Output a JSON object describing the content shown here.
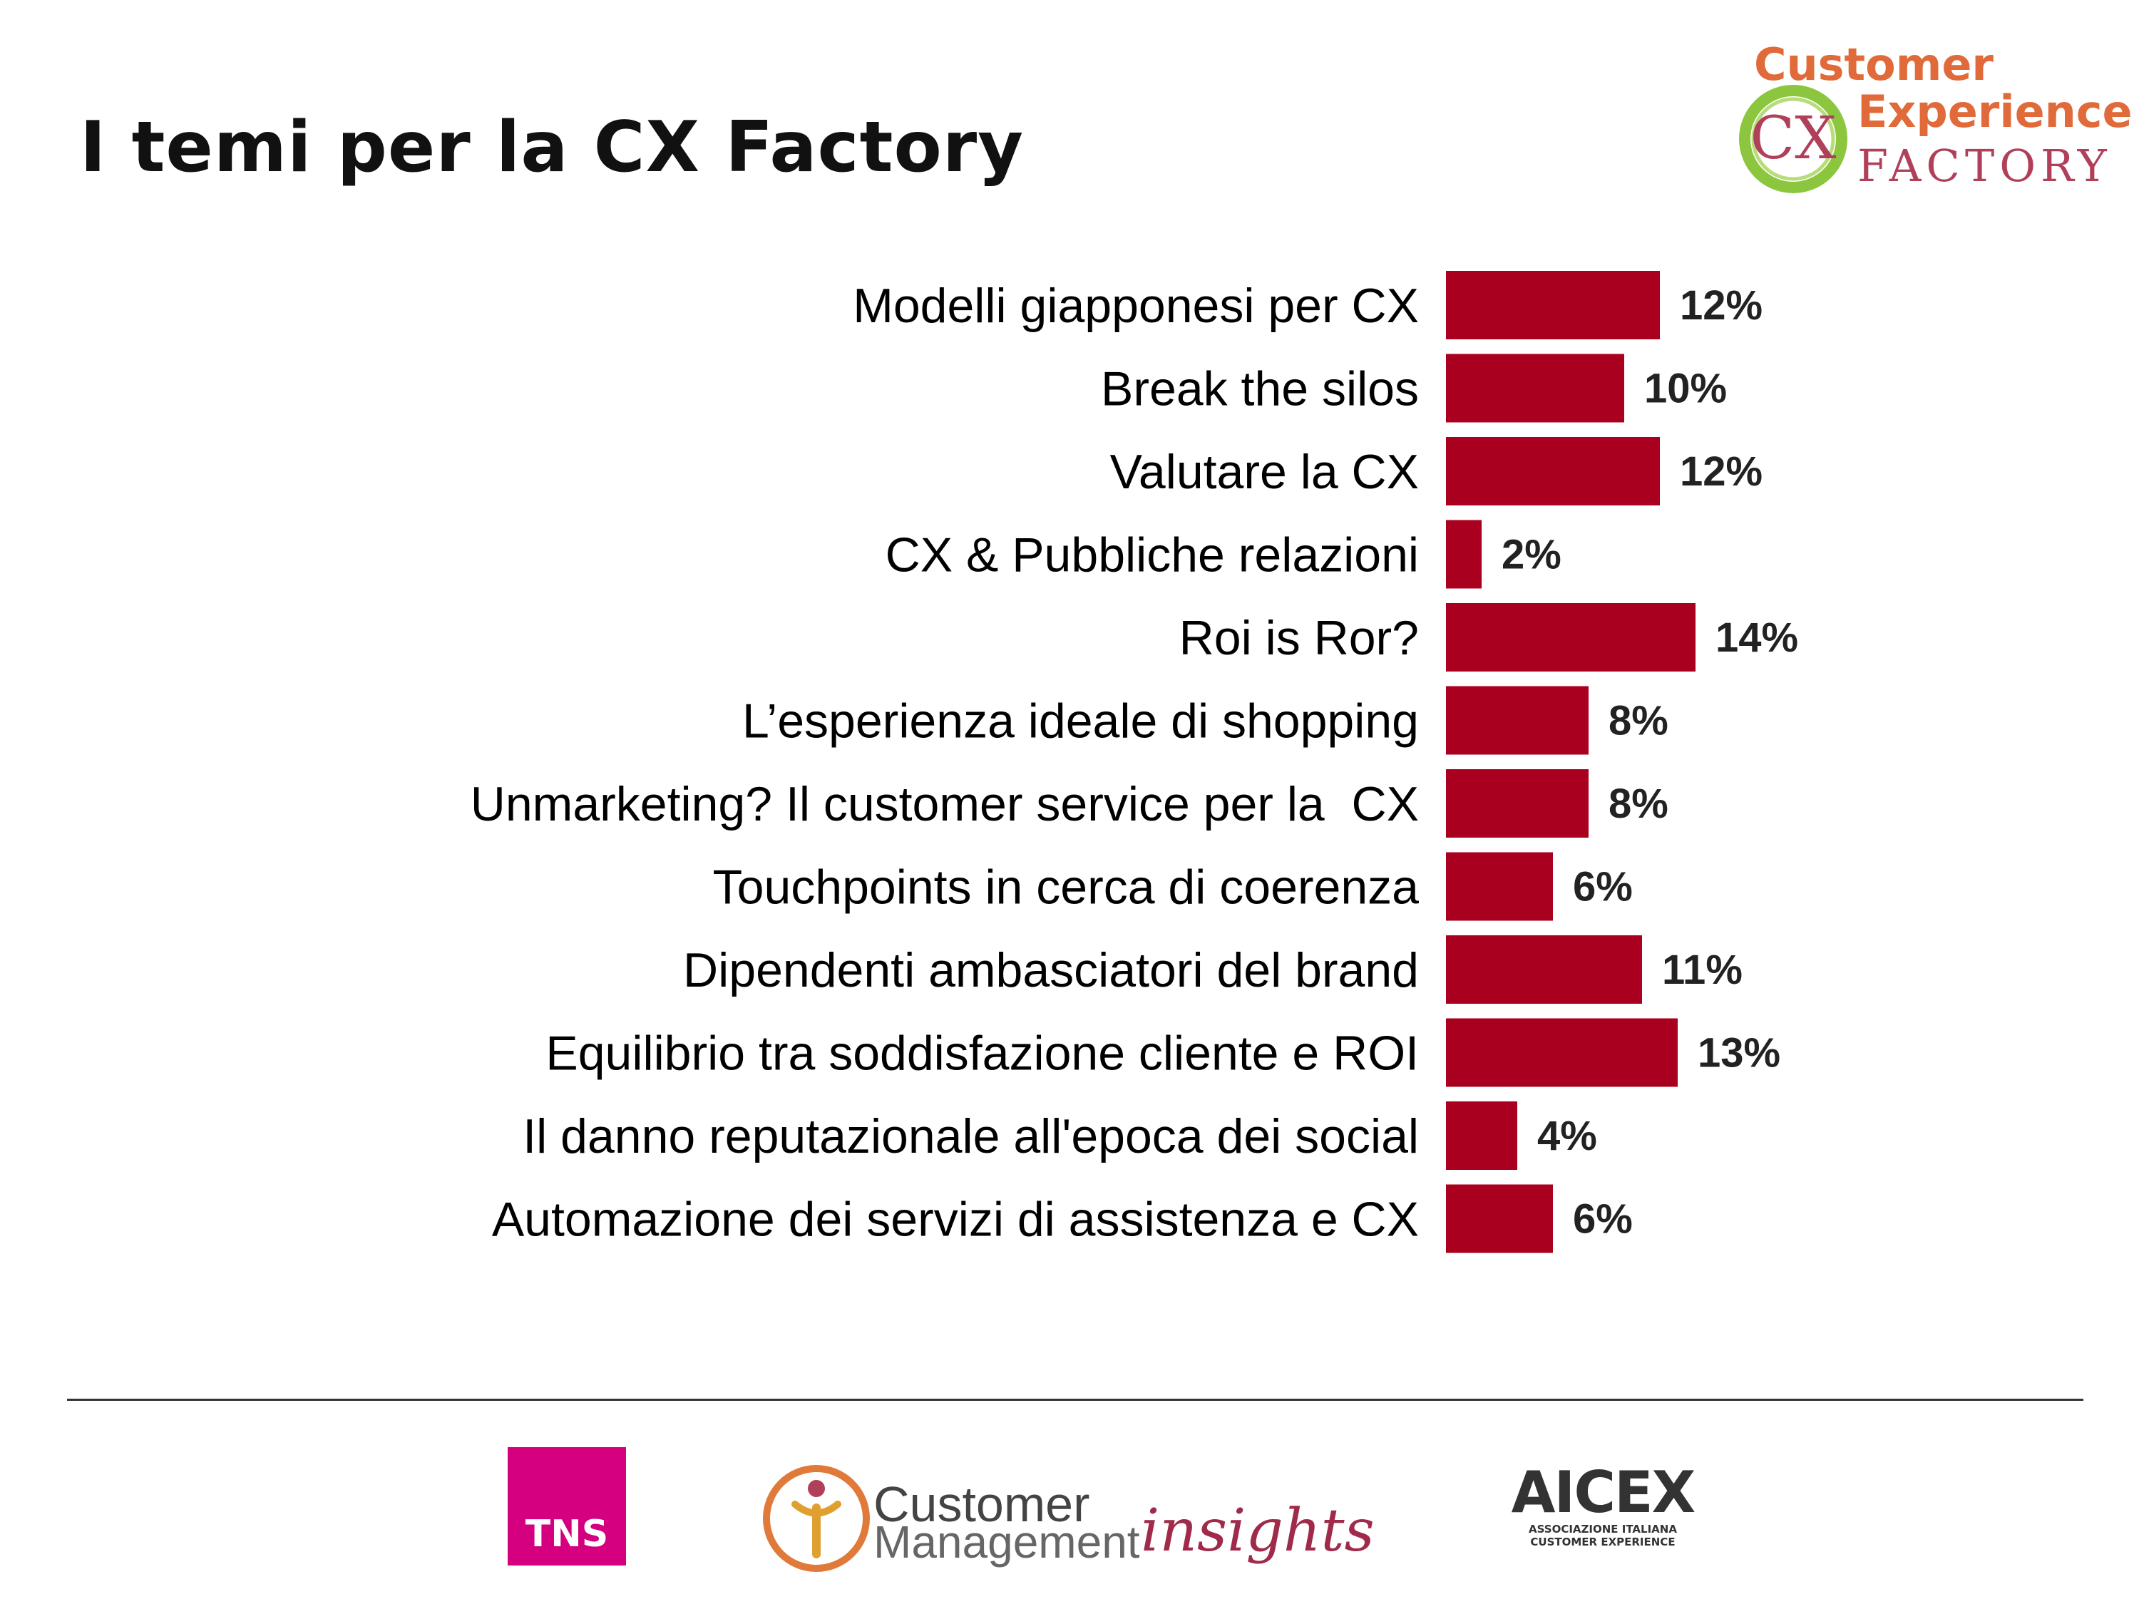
{
  "slide": {
    "title": "I temi per la CX Factory"
  },
  "brand_logo": {
    "line1": "Customer",
    "line2": "Experience",
    "line3": "FACTORY",
    "mark": "CX",
    "colors": {
      "orange": "#e06a3a",
      "green": "#8cc63f",
      "magenta": "#b0405a"
    }
  },
  "chart_data": {
    "type": "bar",
    "orientation": "horizontal",
    "categories": [
      "Modelli giapponesi per CX",
      "Break the silos",
      "Valutare la CX",
      "CX & Pubbliche relazioni",
      "Roi is Ror?",
      "L’esperienza ideale di shopping",
      "Unmarketing? Il customer service per la  CX",
      "Touchpoints in cerca di coerenza",
      "Dipendenti ambasciatori del brand",
      "Equilibrio tra soddisfazione cliente e ROI",
      "Il danno reputazionale all'epoca dei social",
      "Automazione dei servizi di assistenza e CX"
    ],
    "values": [
      12,
      10,
      12,
      2,
      14,
      8,
      8,
      6,
      11,
      13,
      4,
      6
    ],
    "value_labels": [
      "12%",
      "10%",
      "12%",
      "2%",
      "14%",
      "8%",
      "8%",
      "6%",
      "11%",
      "13%",
      "4%",
      "6%"
    ],
    "unit": "%",
    "bar_color": "#a8001e",
    "grid": false,
    "legend": "none"
  },
  "footer": {
    "tns_logo": {
      "text": "TNS",
      "color": "#d4007f"
    },
    "cmi_logo": {
      "word1": "Customer",
      "word2": "Management",
      "word3": "insights"
    },
    "aicex_logo": {
      "main": "AICEX",
      "sub1": "ASSOCIAZIONE ITALIANA",
      "sub2": "CUSTOMER EXPERIENCE"
    }
  }
}
